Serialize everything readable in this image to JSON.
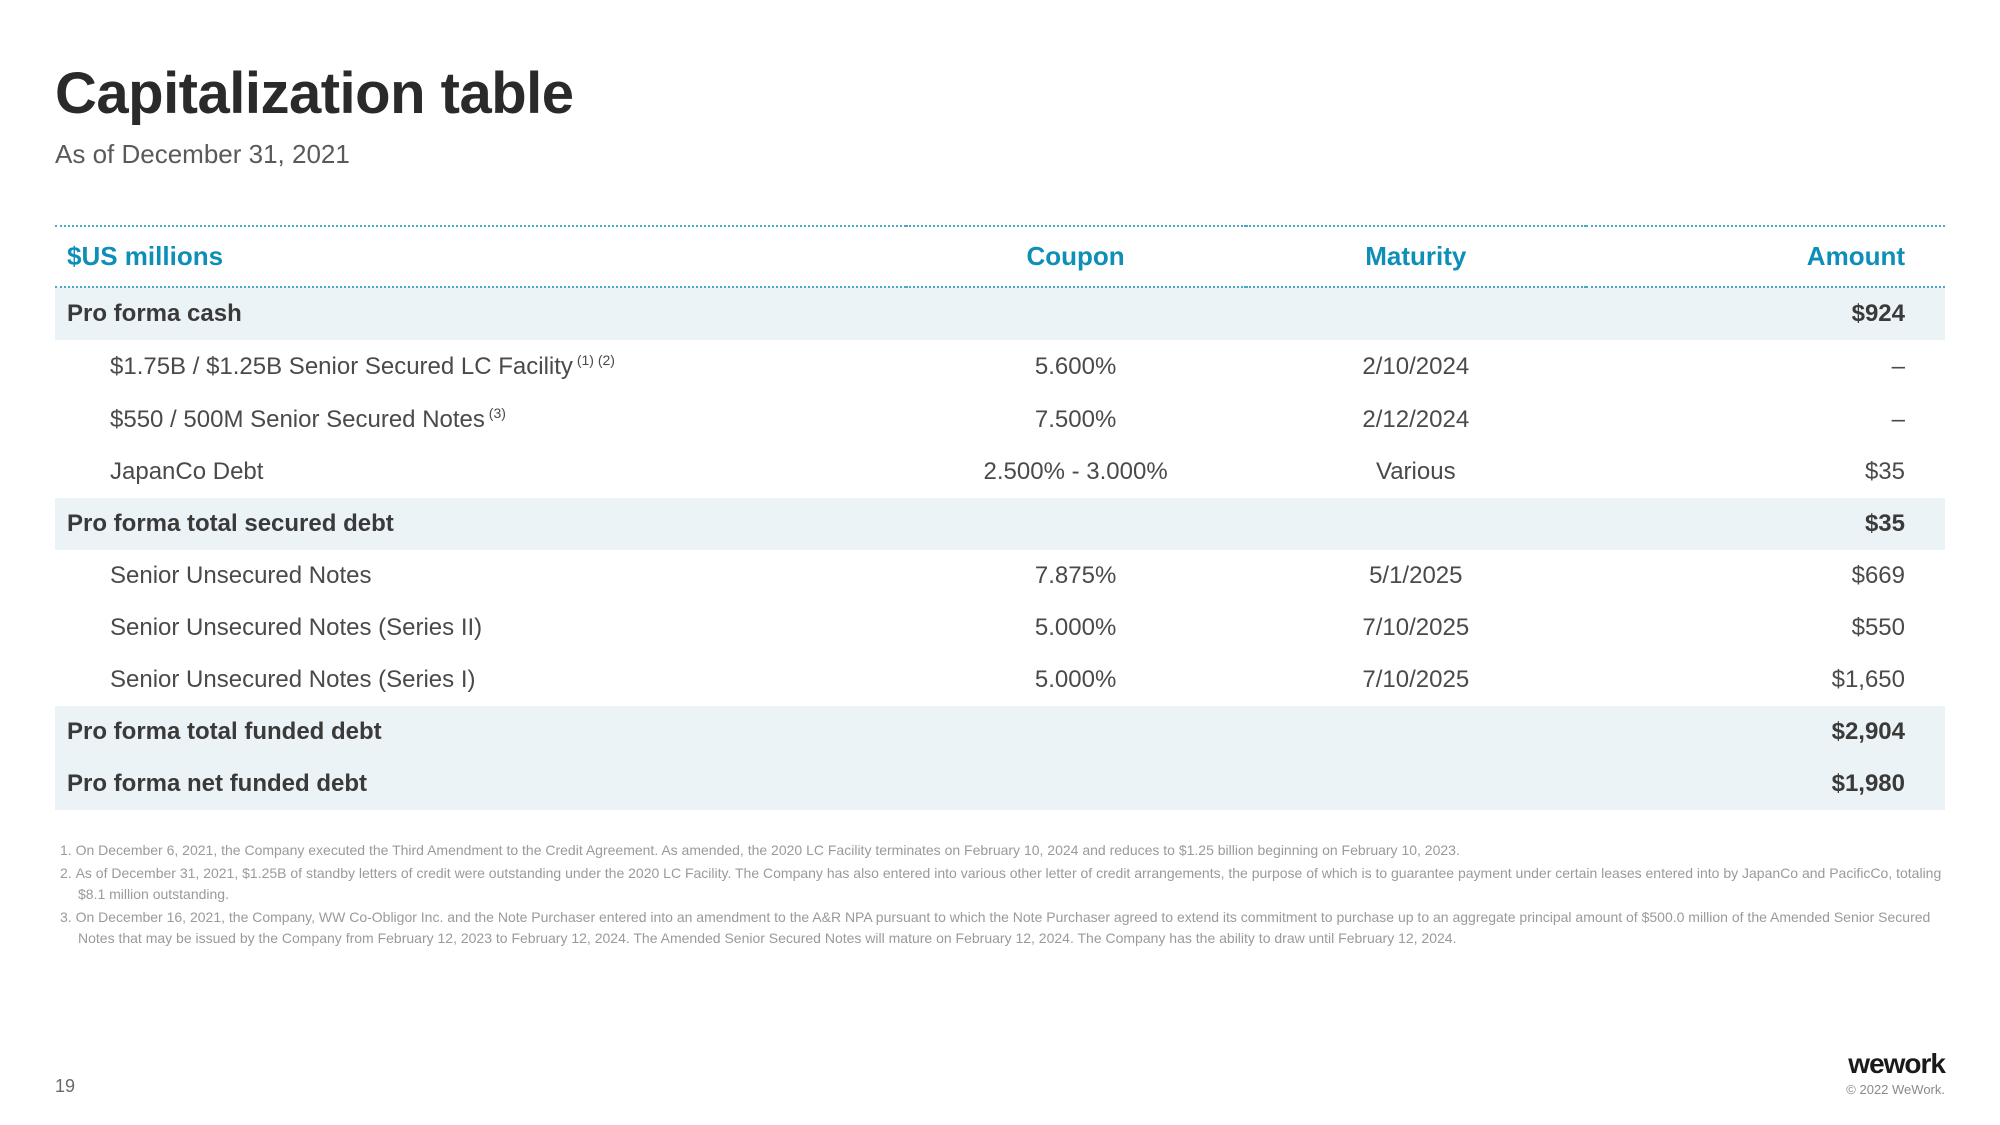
{
  "header": {
    "title": "Capitalization table",
    "subtitle": "As of December 31, 2021"
  },
  "table": {
    "columns": {
      "label": "$US millions",
      "coupon": "Coupon",
      "maturity": "Maturity",
      "amount": "Amount"
    },
    "rows": [
      {
        "type": "total",
        "label": "Pro forma cash",
        "coupon": "",
        "maturity": "",
        "amount": "$924"
      },
      {
        "type": "detail",
        "label": "$1.75B / $1.25B Senior Secured LC Facility",
        "sup": "(1) (2)",
        "coupon": "5.600%",
        "maturity": "2/10/2024",
        "amount": "–"
      },
      {
        "type": "detail",
        "label": "$550 / 500M Senior Secured Notes",
        "sup": "(3)",
        "coupon": "7.500%",
        "maturity": "2/12/2024",
        "amount": "–"
      },
      {
        "type": "detail",
        "label": "JapanCo Debt",
        "sup": "",
        "coupon": "2.500% - 3.000%",
        "maturity": "Various",
        "amount": "$35"
      },
      {
        "type": "total",
        "label": "Pro forma total secured debt",
        "coupon": "",
        "maturity": "",
        "amount": "$35"
      },
      {
        "type": "detail",
        "label": "Senior Unsecured Notes",
        "sup": "",
        "coupon": "7.875%",
        "maturity": "5/1/2025",
        "amount": "$669"
      },
      {
        "type": "detail",
        "label": "Senior Unsecured Notes (Series II)",
        "sup": "",
        "coupon": "5.000%",
        "maturity": "7/10/2025",
        "amount": "$550"
      },
      {
        "type": "detail",
        "label": "Senior Unsecured Notes (Series I)",
        "sup": "",
        "coupon": "5.000%",
        "maturity": "7/10/2025",
        "amount": "$1,650"
      },
      {
        "type": "total",
        "label": "Pro forma total funded debt",
        "coupon": "",
        "maturity": "",
        "amount": "$2,904"
      },
      {
        "type": "total",
        "label": "Pro forma net funded debt",
        "coupon": "",
        "maturity": "",
        "amount": "$1,980"
      }
    ]
  },
  "footnotes": [
    "On December 6, 2021, the Company executed the Third Amendment to the Credit Agreement. As amended, the 2020 LC Facility terminates on February 10, 2024 and reduces to $1.25 billion beginning on February 10, 2023.",
    "As of December 31, 2021, $1.25B of standby letters of credit were outstanding under the 2020 LC Facility. The Company has also entered into various other letter of credit arrangements, the purpose of which is to guarantee payment under certain leases entered into by JapanCo and PacificCo, totaling $8.1 million outstanding.",
    "On December 16, 2021, the Company, WW Co-Obligor Inc. and the Note Purchaser entered into an amendment to the A&R NPA pursuant to which the Note Purchaser agreed to extend its commitment to purchase up to an aggregate principal amount of $500.0 million of the Amended Senior Secured Notes that may be issued by the Company from February 12, 2023 to February 12, 2024. The Amended Senior Secured Notes will mature on February 12, 2024. The Company has the ability to draw until February 12, 2024."
  ],
  "footer": {
    "page": "19",
    "brand": "wework",
    "copyright": "© 2022 WeWork."
  },
  "style": {
    "accent_color": "#0d8fb8",
    "dotted_border_color": "#4aa8c9",
    "total_row_bg": "#ebf3f6",
    "text_color": "#4a4a4a",
    "title_color": "#2a2a2a",
    "footnote_color": "#9a9a9a",
    "title_fontsize": 58,
    "subtitle_fontsize": 26,
    "th_fontsize": 26,
    "td_fontsize": 24,
    "footnote_fontsize": 14
  }
}
